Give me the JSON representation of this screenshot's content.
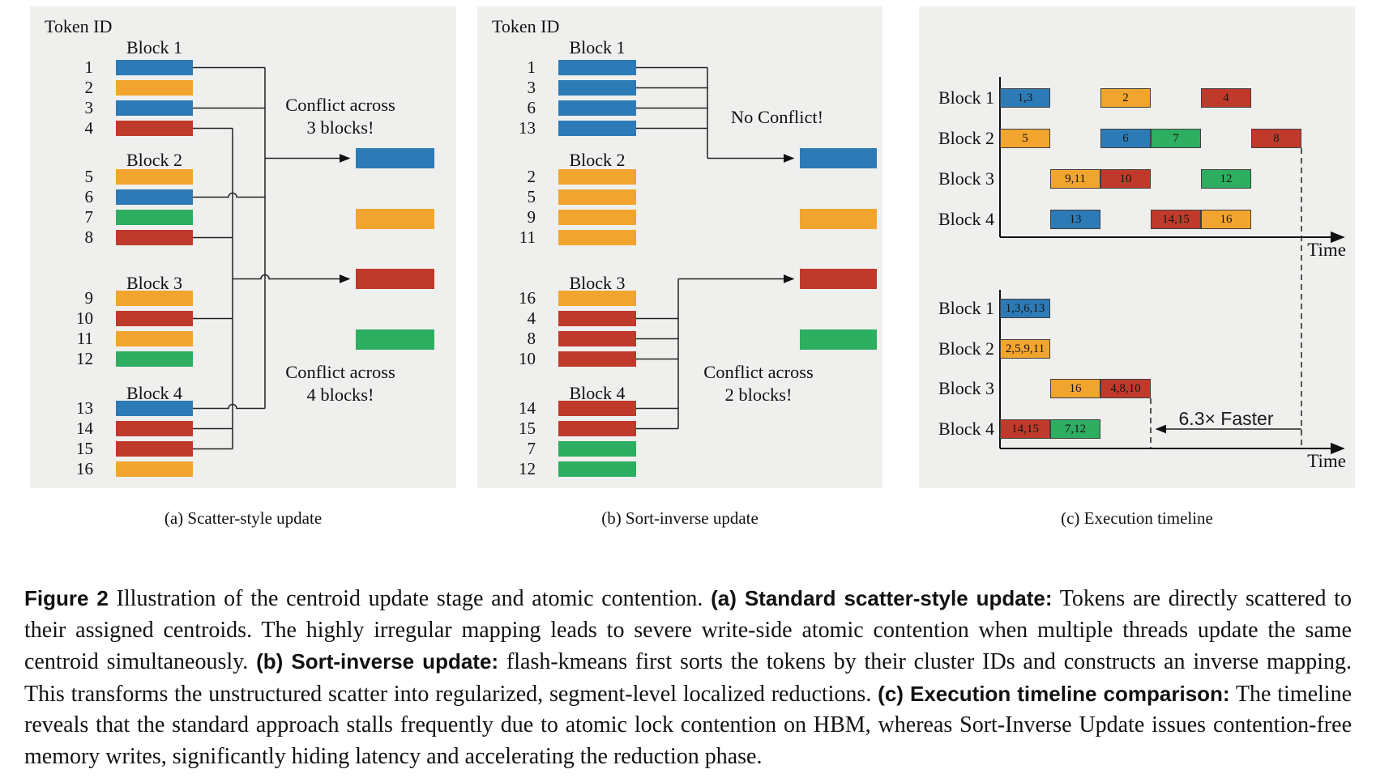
{
  "figure": {
    "panel_a": {
      "token_id_label": "Token ID",
      "subcaption": "(a) Scatter-style update",
      "blocks": [
        {
          "name": "Block 1",
          "tokens": [
            [
              "1",
              "blue"
            ],
            [
              "2",
              "orange"
            ],
            [
              "3",
              "blue"
            ],
            [
              "4",
              "red"
            ]
          ]
        },
        {
          "name": "Block 2",
          "tokens": [
            [
              "5",
              "orange"
            ],
            [
              "6",
              "blue"
            ],
            [
              "7",
              "green"
            ],
            [
              "8",
              "red"
            ]
          ]
        },
        {
          "name": "Block 3",
          "tokens": [
            [
              "9",
              "orange"
            ],
            [
              "10",
              "red"
            ],
            [
              "11",
              "orange"
            ],
            [
              "12",
              "green"
            ]
          ]
        },
        {
          "name": "Block 4",
          "tokens": [
            [
              "13",
              "blue"
            ],
            [
              "14",
              "red"
            ],
            [
              "15",
              "red"
            ],
            [
              "16",
              "orange"
            ]
          ]
        }
      ],
      "conflict_groups": [
        {
          "color": "blue",
          "token_ids": [
            "1",
            "3",
            "6",
            "13"
          ]
        },
        {
          "color": "red",
          "token_ids": [
            "4",
            "8",
            "10",
            "14",
            "15"
          ]
        }
      ],
      "annotations": [
        {
          "lines": [
            "Conflict across",
            "3 blocks!"
          ]
        },
        {
          "lines": [
            "Conflict across",
            "4 blocks!"
          ]
        }
      ],
      "centroids": [
        "blue",
        "orange",
        "red",
        "green"
      ]
    },
    "panel_b": {
      "token_id_label": "Token ID",
      "subcaption": "(b) Sort-inverse update",
      "blocks": [
        {
          "name": "Block 1",
          "tokens": [
            [
              "1",
              "blue"
            ],
            [
              "3",
              "blue"
            ],
            [
              "6",
              "blue"
            ],
            [
              "13",
              "blue"
            ]
          ]
        },
        {
          "name": "Block 2",
          "tokens": [
            [
              "2",
              "orange"
            ],
            [
              "5",
              "orange"
            ],
            [
              "9",
              "orange"
            ],
            [
              "11",
              "orange"
            ]
          ]
        },
        {
          "name": "Block 3",
          "tokens": [
            [
              "16",
              "orange"
            ],
            [
              "4",
              "red"
            ],
            [
              "8",
              "red"
            ],
            [
              "10",
              "red"
            ]
          ]
        },
        {
          "name": "Block 4",
          "tokens": [
            [
              "14",
              "red"
            ],
            [
              "15",
              "red"
            ],
            [
              "7",
              "green"
            ],
            [
              "12",
              "green"
            ]
          ]
        }
      ],
      "conflict_groups": [
        {
          "color": "blue",
          "token_ids": [
            "1",
            "3",
            "6",
            "13"
          ]
        },
        {
          "color": "red",
          "token_ids": [
            "4",
            "8",
            "10",
            "14",
            "15"
          ]
        }
      ],
      "annotations": [
        {
          "lines": [
            "No Conflict!"
          ]
        },
        {
          "lines": [
            "Conflict across",
            "2 blocks!"
          ]
        }
      ],
      "centroids": [
        "blue",
        "orange",
        "red",
        "green"
      ]
    },
    "panel_c": {
      "subcaption": "(c) Execution timeline",
      "time_label": "Time",
      "faster_label": "6.3× Faster",
      "block_labels": [
        "Block 1",
        "Block 2",
        "Block 3",
        "Block 4"
      ],
      "top_timeline": {
        "rows": [
          [
            {
              "t": 0,
              "label": "1,3",
              "color": "blue"
            },
            {
              "t": 2,
              "label": "2",
              "color": "orange"
            },
            {
              "t": 4,
              "label": "4",
              "color": "red"
            }
          ],
          [
            {
              "t": 0,
              "label": "5",
              "color": "orange"
            },
            {
              "t": 2,
              "label": "6",
              "color": "blue"
            },
            {
              "t": 3,
              "label": "7",
              "color": "green"
            },
            {
              "t": 5,
              "label": "8",
              "color": "red"
            }
          ],
          [
            {
              "t": 1,
              "label": "9,11",
              "color": "orange"
            },
            {
              "t": 2,
              "label": "10",
              "color": "red"
            },
            {
              "t": 4,
              "label": "12",
              "color": "green"
            }
          ],
          [
            {
              "t": 1,
              "label": "13",
              "color": "blue"
            },
            {
              "t": 3,
              "label": "14,15",
              "color": "red"
            },
            {
              "t": 4,
              "label": "16",
              "color": "orange"
            }
          ]
        ],
        "total_units": 6
      },
      "bottom_timeline": {
        "rows": [
          [
            {
              "t": 0,
              "label": "1,3,6,13",
              "color": "blue"
            }
          ],
          [
            {
              "t": 0,
              "label": "2,5,9,11",
              "color": "orange"
            }
          ],
          [
            {
              "t": 1,
              "label": "16",
              "color": "orange"
            },
            {
              "t": 2,
              "label": "4,8,10",
              "color": "red"
            }
          ],
          [
            {
              "t": 0,
              "label": "14,15",
              "color": "red"
            },
            {
              "t": 1,
              "label": "7,12",
              "color": "green"
            }
          ]
        ],
        "total_units": 3
      }
    }
  },
  "caption": {
    "segments": [
      {
        "text": "Figure 2",
        "style": "bold"
      },
      {
        "text": "  Illustration of the centroid update stage and atomic contention.  ",
        "style": "normal"
      },
      {
        "text": "(a) Standard scatter-style update:",
        "style": "bold"
      },
      {
        "text": " Tokens are directly scattered to their assigned centroids. The highly irregular mapping leads to severe write-side atomic contention when multiple threads update the same centroid simultaneously.  ",
        "style": "normal"
      },
      {
        "text": "(b) Sort-inverse update:",
        "style": "bold"
      },
      {
        "text": " flash-kmeans first sorts the tokens by their cluster IDs and constructs an inverse mapping. This transforms the unstructured scatter into regularized, segment-level localized reductions.  ",
        "style": "normal"
      },
      {
        "text": "(c) Execution timeline comparison:",
        "style": "bold"
      },
      {
        "text": " The timeline reveals that the standard approach stalls frequently due to atomic lock contention on HBM, whereas Sort-Inverse Update issues contention-free memory writes, significantly hiding latency and accelerating the reduction phase.",
        "style": "normal"
      }
    ]
  },
  "colors": {
    "blue": "#2d7bb6",
    "orange": "#f2a52e",
    "red": "#c03a2b",
    "green": "#2dae60",
    "panel_bg": "#efefed",
    "connector_line": "#222222",
    "axis": "#111111",
    "bar_border": "#3f3f3f"
  }
}
